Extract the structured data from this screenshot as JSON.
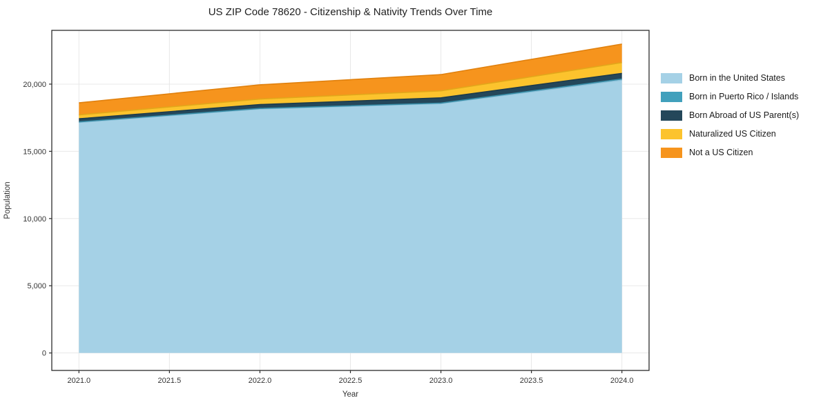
{
  "chart_data": {
    "type": "area",
    "stacked": true,
    "title": "US ZIP Code 78620 - Citizenship & Nativity Trends Over Time",
    "xlabel": "Year",
    "ylabel": "Population",
    "x": [
      2021,
      2022,
      2023,
      2024
    ],
    "series": [
      {
        "name": "Born in the United States",
        "values": [
          17150,
          18150,
          18550,
          20300
        ],
        "color": "#A5D1E6",
        "edge": "#8FC2DA"
      },
      {
        "name": "Born in Puerto Rico / Islands",
        "values": [
          40,
          40,
          40,
          80
        ],
        "color": "#41A0BC",
        "edge": "#378CA6"
      },
      {
        "name": "Born Abroad of US Parent(s)",
        "values": [
          230,
          290,
          390,
          420
        ],
        "color": "#24475A",
        "edge": "#1C3A4B"
      },
      {
        "name": "Naturalized US Citizen",
        "values": [
          290,
          410,
          520,
          800
        ],
        "color": "#FCC32D",
        "edge": "#E2A71A"
      },
      {
        "name": "Not a US Citizen",
        "values": [
          900,
          1060,
          1210,
          1380
        ],
        "color": "#F6941D",
        "edge": "#E0800D"
      }
    ],
    "xticks": [
      2021.0,
      2021.5,
      2022.0,
      2022.5,
      2023.0,
      2023.5,
      2024.0
    ],
    "yticks": [
      0,
      5000,
      10000,
      15000,
      20000
    ],
    "xlim": [
      2020.85,
      2024.15
    ],
    "ylim": [
      -1300,
      24000
    ],
    "grid": true,
    "legend_position": "right-outside"
  },
  "colors": {
    "background": "#FFFFFF",
    "grid": "#E8E8E8",
    "spine": "#2B2B2B",
    "tick_text": "#333333",
    "axis_label_text": "#333333",
    "title_text": "#1F1F1F"
  }
}
